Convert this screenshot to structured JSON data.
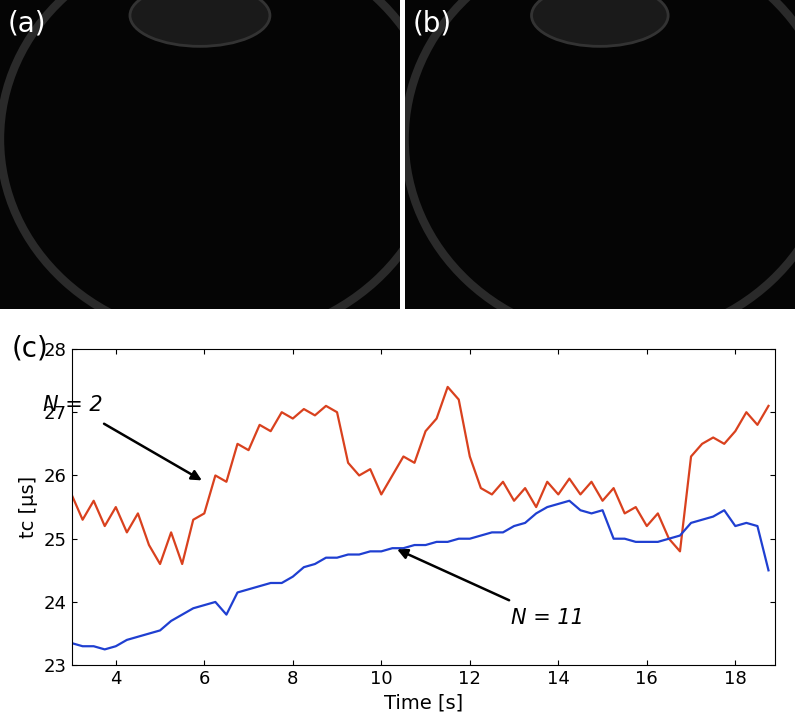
{
  "panels": [
    {
      "label": "(a)"
    },
    {
      "label": "(b)"
    }
  ],
  "chart_data": {
    "type": "line",
    "title": "(c)",
    "x_label": "Time [s]",
    "y_label": "tc [μs]",
    "x": [
      3.0,
      3.25,
      3.5,
      3.75,
      4.0,
      4.25,
      4.5,
      4.75,
      5.0,
      5.25,
      5.5,
      5.75,
      6.0,
      6.25,
      6.5,
      6.75,
      7.0,
      7.25,
      7.5,
      7.75,
      8.0,
      8.25,
      8.5,
      8.75,
      9.0,
      9.25,
      9.5,
      9.75,
      10.0,
      10.25,
      10.5,
      10.75,
      11.0,
      11.25,
      11.5,
      11.75,
      12.0,
      12.25,
      12.5,
      12.75,
      13.0,
      13.25,
      13.5,
      13.75,
      14.0,
      14.25,
      14.5,
      14.75,
      15.0,
      15.25,
      15.5,
      15.75,
      16.0,
      16.25,
      16.5,
      16.75,
      17.0,
      17.25,
      17.5,
      17.75,
      18.0,
      18.25,
      18.5,
      18.75
    ],
    "series": [
      {
        "color": "#d9411e",
        "values": [
          25.7,
          25.3,
          25.6,
          25.2,
          25.5,
          25.1,
          25.4,
          24.9,
          24.6,
          25.1,
          24.6,
          25.3,
          25.4,
          26.0,
          25.9,
          26.5,
          26.4,
          26.8,
          26.7,
          27.0,
          26.9,
          27.05,
          26.95,
          27.1,
          27.0,
          26.2,
          26.0,
          26.1,
          25.7,
          26.0,
          26.3,
          26.2,
          26.7,
          26.9,
          27.4,
          27.2,
          26.3,
          25.8,
          25.7,
          25.9,
          25.6,
          25.8,
          25.5,
          25.9,
          25.7,
          25.95,
          25.7,
          25.9,
          25.6,
          25.8,
          25.4,
          25.5,
          25.2,
          25.4,
          25.0,
          24.8,
          26.3,
          26.5,
          26.6,
          26.5,
          26.7,
          27.0,
          26.8,
          27.1
        ]
      },
      {
        "color": "#1f3fd1",
        "values": [
          23.35,
          23.3,
          23.3,
          23.25,
          23.3,
          23.4,
          23.45,
          23.5,
          23.55,
          23.7,
          23.8,
          23.9,
          23.95,
          24.0,
          23.8,
          24.15,
          24.2,
          24.25,
          24.3,
          24.3,
          24.4,
          24.55,
          24.6,
          24.7,
          24.7,
          24.75,
          24.75,
          24.8,
          24.8,
          24.85,
          24.85,
          24.9,
          24.9,
          24.95,
          24.95,
          25.0,
          25.0,
          25.05,
          25.1,
          25.1,
          25.2,
          25.25,
          25.4,
          25.5,
          25.55,
          25.6,
          25.45,
          25.4,
          25.45,
          25.0,
          25.0,
          24.95,
          24.95,
          24.95,
          25.0,
          25.05,
          25.25,
          25.3,
          25.35,
          25.45,
          25.2,
          25.25,
          25.2,
          24.5
        ]
      }
    ],
    "xlim": [
      3,
      18.9
    ],
    "ylim": [
      23,
      28
    ],
    "xticks": [
      4,
      6,
      8,
      10,
      12,
      14,
      16,
      18
    ],
    "yticks": [
      23,
      24,
      25,
      26,
      27,
      28
    ],
    "annotations": [
      {
        "text": "N = 2",
        "x": 6.0,
        "y": 25.9
      },
      {
        "text": "N = 11",
        "x": 10.3,
        "y": 24.85
      }
    ]
  }
}
